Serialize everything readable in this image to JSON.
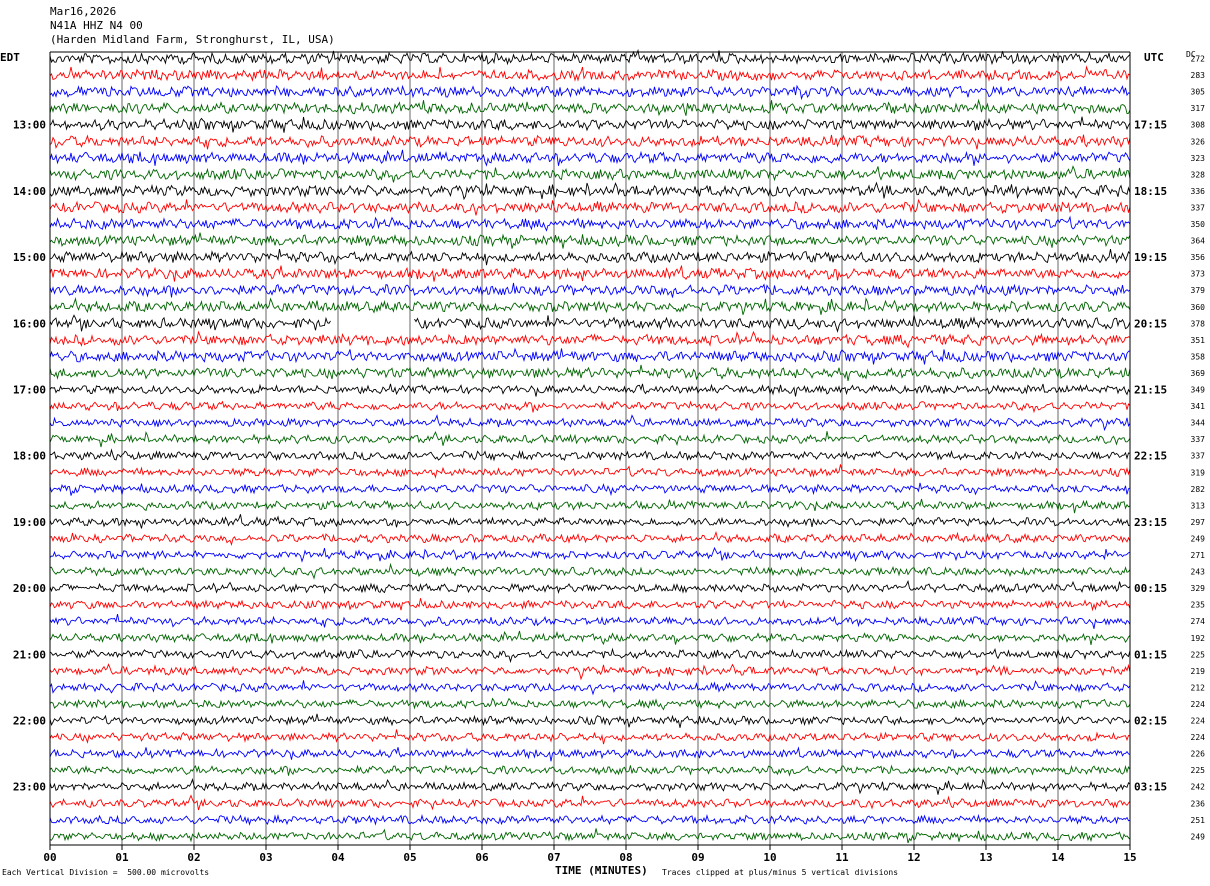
{
  "header": {
    "date": "Mar16,2026",
    "station": "N41A HHZ N4 00",
    "location": "(Harden Midland Farm, Stronghurst, IL, USA)"
  },
  "left_tz": "EDT",
  "right_tz": "UTC",
  "dc_header": "DC",
  "footer": {
    "scale_note": "Each Vertical Division =  500.00 microvolts",
    "clip_note": "Traces clipped at plus/minus 5 vertical divisions"
  },
  "chart_data": {
    "type": "line",
    "xlabel": "TIME (MINUTES)",
    "xlim": [
      0,
      15
    ],
    "x_ticks": [
      "00",
      "01",
      "02",
      "03",
      "04",
      "05",
      "06",
      "07",
      "08",
      "09",
      "10",
      "11",
      "12",
      "13",
      "14",
      "15"
    ],
    "left_time_labels": [
      "13:00",
      "14:00",
      "15:00",
      "16:00",
      "17:00",
      "18:00",
      "19:00",
      "20:00",
      "21:00",
      "22:00",
      "23:00"
    ],
    "right_time_labels": [
      "17:15",
      "18:15",
      "19:15",
      "20:15",
      "21:15",
      "22:15",
      "23:15",
      "00:15",
      "01:15",
      "02:15",
      "03:15"
    ],
    "trace_colors": [
      "#000000",
      "#ff0000",
      "#0000ff",
      "#006400"
    ],
    "trace_count": 48,
    "dc_offsets": [
      272,
      283,
      305,
      317,
      308,
      326,
      323,
      328,
      336,
      337,
      350,
      364,
      356,
      373,
      379,
      360,
      378,
      351,
      358,
      369,
      349,
      341,
      344,
      337,
      337,
      319,
      282,
      313,
      297,
      249,
      271,
      243,
      329,
      235,
      274,
      192,
      225,
      219,
      212,
      224,
      224,
      224,
      226,
      225,
      242,
      236,
      251,
      249
    ],
    "data_gap": {
      "trace_index": 16,
      "start_minute": 3.9,
      "end_minute": 5.05
    }
  }
}
